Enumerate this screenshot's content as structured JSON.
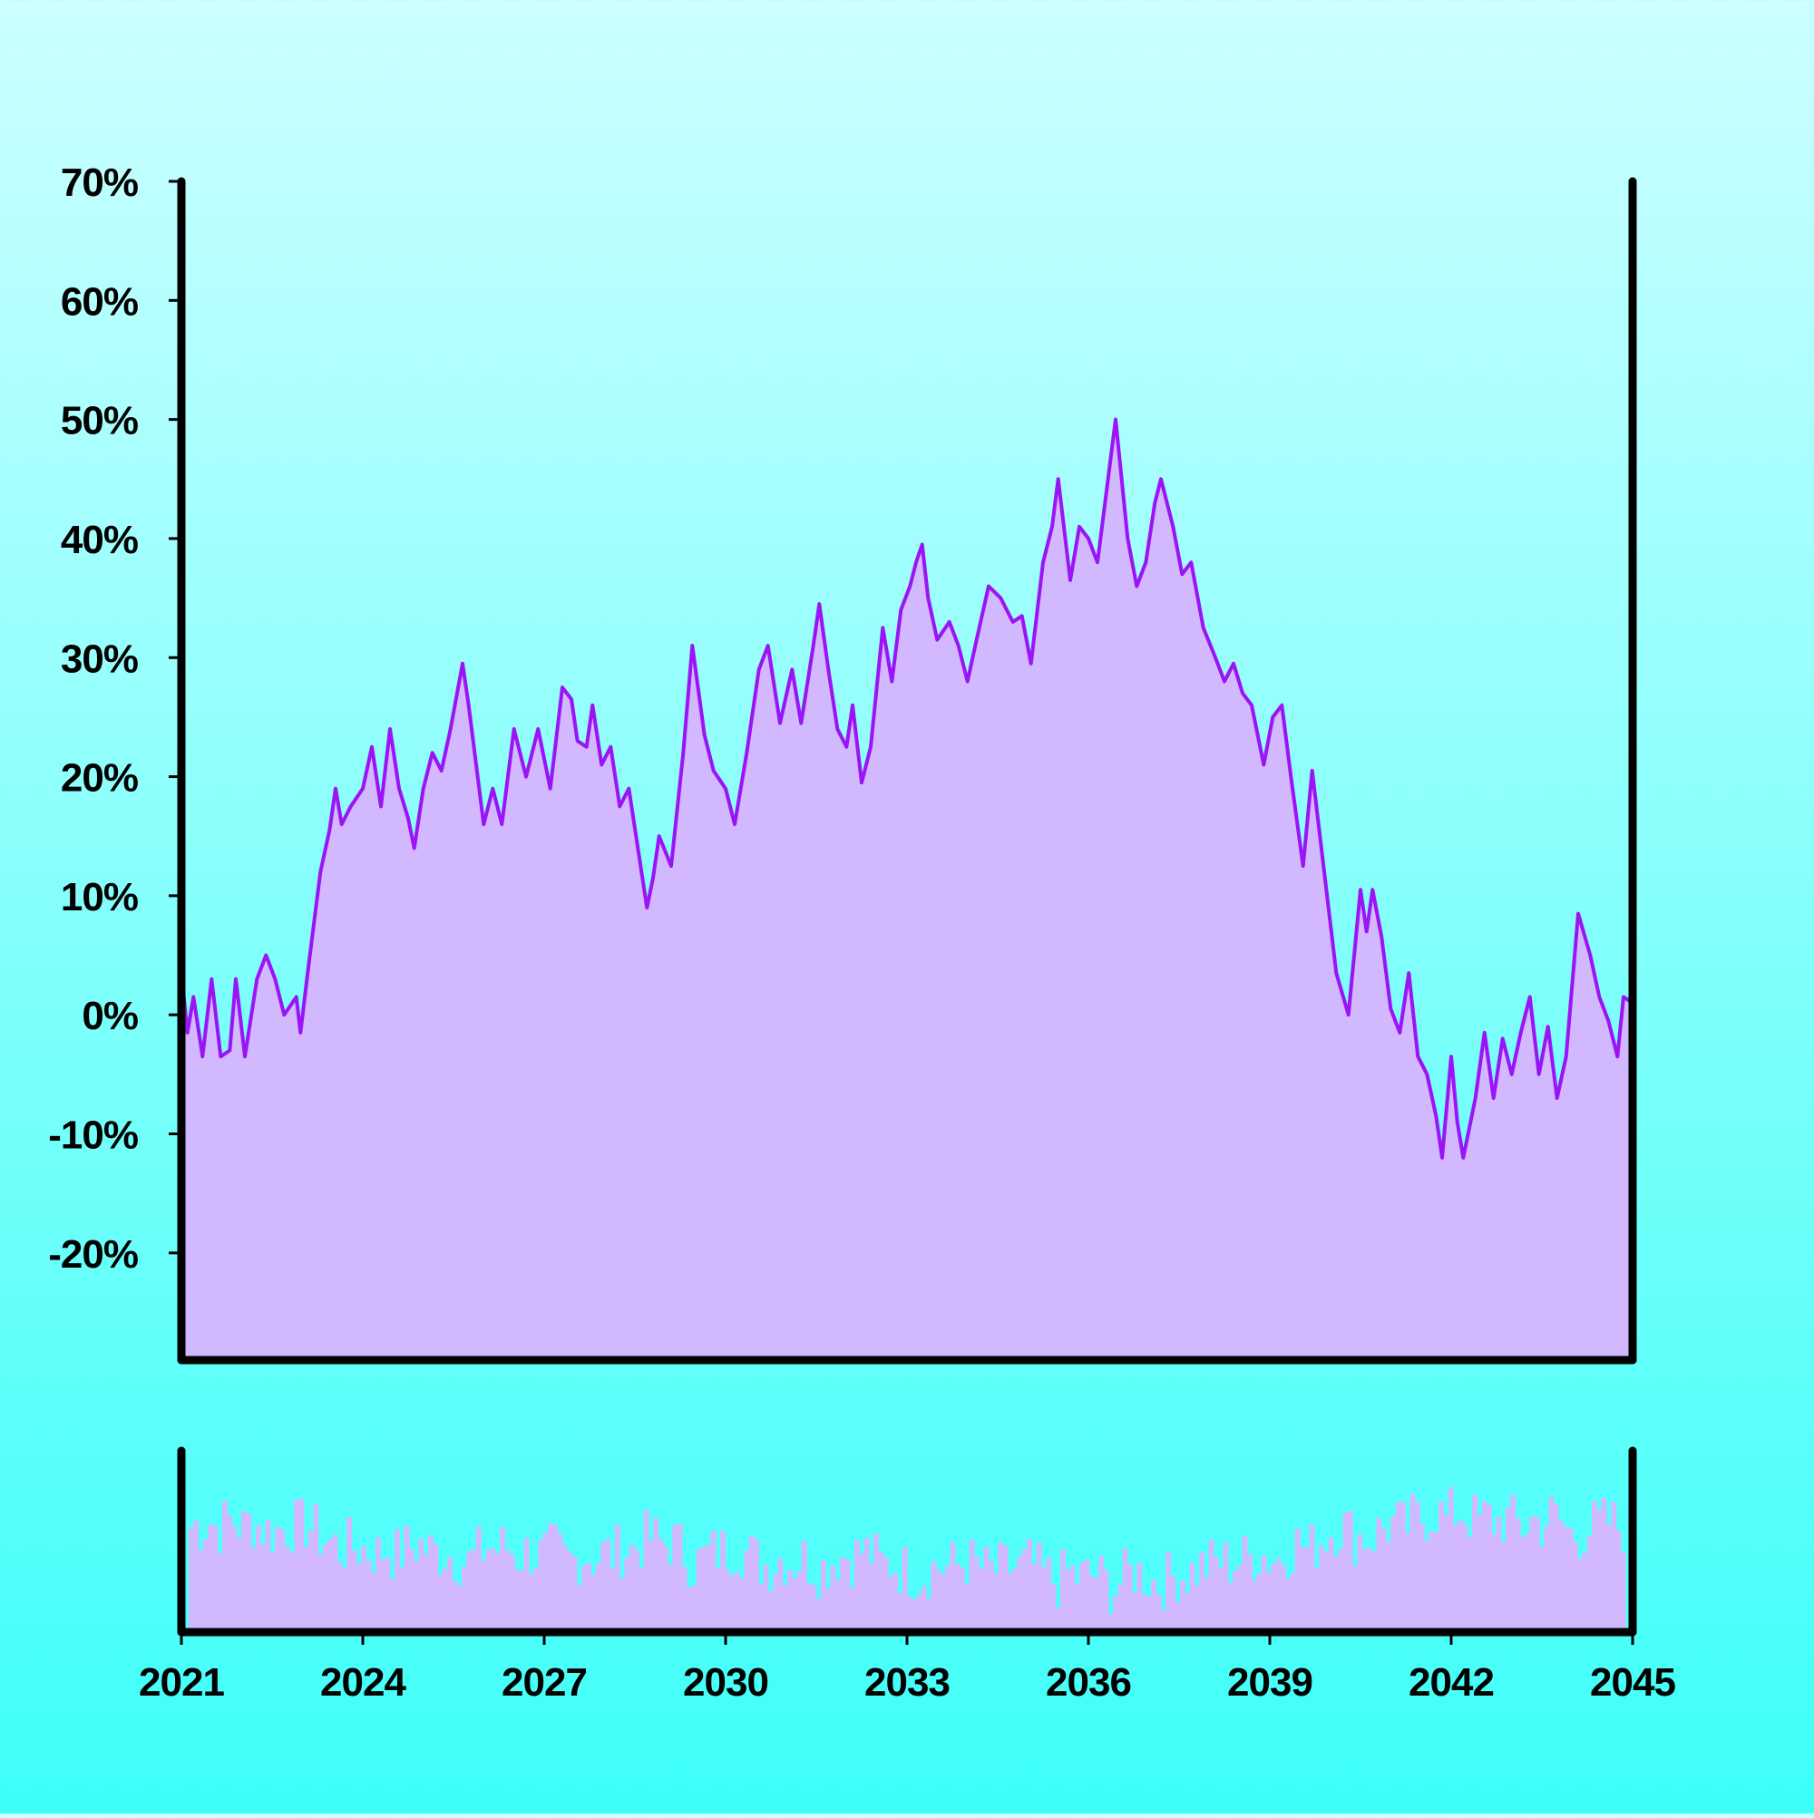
{
  "chart_data": {
    "type": "area",
    "title": "",
    "xlabel": "",
    "ylabel": "",
    "x_tick_labels": [
      "2021",
      "2024",
      "2027",
      "2030",
      "2033",
      "2036",
      "2039",
      "2042",
      "2045"
    ],
    "x_range": [
      2021,
      2045
    ],
    "y_tick_labels": [
      "70%",
      "60%",
      "50%",
      "40%",
      "30%",
      "20%",
      "10%",
      "0%",
      "-10%",
      "-20%"
    ],
    "y_range": [
      -29,
      70
    ],
    "grid": false,
    "legend": "none",
    "colors": {
      "line": "#9b14f5",
      "fill": "#d2b9ff",
      "axis": "#000000"
    },
    "series": [
      {
        "values": [
          [
            2021.0,
            3.5
          ],
          [
            2021.1,
            -1.5
          ],
          [
            2021.2,
            1.5
          ],
          [
            2021.35,
            -3.5
          ],
          [
            2021.5,
            3.0
          ],
          [
            2021.65,
            -3.5
          ],
          [
            2021.8,
            -3.0
          ],
          [
            2021.9,
            3.0
          ],
          [
            2022.05,
            -3.5
          ],
          [
            2022.25,
            3.0
          ],
          [
            2022.4,
            5.0
          ],
          [
            2022.55,
            3.0
          ],
          [
            2022.7,
            0.0
          ],
          [
            2022.9,
            1.5
          ],
          [
            2022.97,
            -1.5
          ],
          [
            2023.1,
            4.0
          ],
          [
            2023.3,
            12.0
          ],
          [
            2023.45,
            15.5
          ],
          [
            2023.55,
            19.0
          ],
          [
            2023.65,
            16.0
          ],
          [
            2023.8,
            17.5
          ],
          [
            2024.0,
            19.0
          ],
          [
            2024.15,
            22.5
          ],
          [
            2024.3,
            17.5
          ],
          [
            2024.45,
            24.0
          ],
          [
            2024.6,
            19.0
          ],
          [
            2024.75,
            16.5
          ],
          [
            2024.85,
            14.0
          ],
          [
            2025.0,
            19.0
          ],
          [
            2025.15,
            22.0
          ],
          [
            2025.3,
            20.5
          ],
          [
            2025.45,
            24.0
          ],
          [
            2025.65,
            29.5
          ],
          [
            2025.75,
            26.0
          ],
          [
            2026.0,
            16.0
          ],
          [
            2026.15,
            19.0
          ],
          [
            2026.3,
            16.0
          ],
          [
            2026.5,
            24.0
          ],
          [
            2026.7,
            20.0
          ],
          [
            2026.9,
            24.0
          ],
          [
            2027.1,
            19.0
          ],
          [
            2027.3,
            27.5
          ],
          [
            2027.45,
            26.5
          ],
          [
            2027.55,
            23.0
          ],
          [
            2027.7,
            22.5
          ],
          [
            2027.8,
            26.0
          ],
          [
            2027.95,
            21.0
          ],
          [
            2028.1,
            22.5
          ],
          [
            2028.25,
            17.5
          ],
          [
            2028.4,
            19.0
          ],
          [
            2028.55,
            14.0
          ],
          [
            2028.7,
            9.0
          ],
          [
            2028.8,
            11.5
          ],
          [
            2028.9,
            15.0
          ],
          [
            2029.1,
            12.5
          ],
          [
            2029.3,
            22.0
          ],
          [
            2029.45,
            31.0
          ],
          [
            2029.65,
            23.5
          ],
          [
            2029.8,
            20.5
          ],
          [
            2030.0,
            19.0
          ],
          [
            2030.15,
            16.0
          ],
          [
            2030.35,
            22.0
          ],
          [
            2030.55,
            29.0
          ],
          [
            2030.7,
            31.0
          ],
          [
            2030.9,
            24.5
          ],
          [
            2031.1,
            29.0
          ],
          [
            2031.25,
            24.5
          ],
          [
            2031.45,
            31.0
          ],
          [
            2031.55,
            34.5
          ],
          [
            2031.7,
            29.0
          ],
          [
            2031.85,
            24.0
          ],
          [
            2032.0,
            22.5
          ],
          [
            2032.1,
            26.0
          ],
          [
            2032.25,
            19.5
          ],
          [
            2032.4,
            22.5
          ],
          [
            2032.6,
            32.5
          ],
          [
            2032.75,
            28.0
          ],
          [
            2032.9,
            34.0
          ],
          [
            2033.05,
            36.0
          ],
          [
            2033.15,
            38.0
          ],
          [
            2033.25,
            39.5
          ],
          [
            2033.35,
            35.0
          ],
          [
            2033.5,
            31.5
          ],
          [
            2033.7,
            33.0
          ],
          [
            2033.85,
            31.0
          ],
          [
            2034.0,
            28.0
          ],
          [
            2034.15,
            31.5
          ],
          [
            2034.35,
            36.0
          ],
          [
            2034.55,
            35.0
          ],
          [
            2034.75,
            33.0
          ],
          [
            2034.9,
            33.5
          ],
          [
            2035.05,
            29.5
          ],
          [
            2035.25,
            38.0
          ],
          [
            2035.4,
            41.0
          ],
          [
            2035.5,
            45.0
          ],
          [
            2035.7,
            36.5
          ],
          [
            2035.85,
            41.0
          ],
          [
            2036.0,
            40.0
          ],
          [
            2036.15,
            38.0
          ],
          [
            2036.3,
            44.0
          ],
          [
            2036.45,
            50.0
          ],
          [
            2036.65,
            40.0
          ],
          [
            2036.8,
            36.0
          ],
          [
            2036.95,
            38.0
          ],
          [
            2037.1,
            43.0
          ],
          [
            2037.2,
            45.0
          ],
          [
            2037.4,
            41.0
          ],
          [
            2037.55,
            37.0
          ],
          [
            2037.7,
            38.0
          ],
          [
            2037.9,
            32.5
          ],
          [
            2038.1,
            30.0
          ],
          [
            2038.25,
            28.0
          ],
          [
            2038.4,
            29.5
          ],
          [
            2038.55,
            27.0
          ],
          [
            2038.7,
            26.0
          ],
          [
            2038.9,
            21.0
          ],
          [
            2039.05,
            25.0
          ],
          [
            2039.2,
            26.0
          ],
          [
            2039.35,
            20.0
          ],
          [
            2039.55,
            12.5
          ],
          [
            2039.7,
            20.5
          ],
          [
            2039.9,
            12.0
          ],
          [
            2040.1,
            3.5
          ],
          [
            2040.3,
            0.0
          ],
          [
            2040.5,
            10.5
          ],
          [
            2040.6,
            7.0
          ],
          [
            2040.7,
            10.5
          ],
          [
            2040.85,
            6.5
          ],
          [
            2041.0,
            0.5
          ],
          [
            2041.15,
            -1.5
          ],
          [
            2041.3,
            3.5
          ],
          [
            2041.45,
            -3.5
          ],
          [
            2041.6,
            -5.0
          ],
          [
            2041.75,
            -8.5
          ],
          [
            2041.85,
            -12.0
          ],
          [
            2042.0,
            -3.5
          ],
          [
            2042.1,
            -9.0
          ],
          [
            2042.2,
            -12.0
          ],
          [
            2042.4,
            -7.0
          ],
          [
            2042.55,
            -1.5
          ],
          [
            2042.7,
            -7.0
          ],
          [
            2042.85,
            -2.0
          ],
          [
            2043.0,
            -5.0
          ],
          [
            2043.15,
            -1.5
          ],
          [
            2043.3,
            1.5
          ],
          [
            2043.45,
            -5.0
          ],
          [
            2043.6,
            -1.0
          ],
          [
            2043.75,
            -7.0
          ],
          [
            2043.9,
            -3.5
          ],
          [
            2044.1,
            8.5
          ],
          [
            2044.3,
            5.0
          ],
          [
            2044.45,
            1.5
          ],
          [
            2044.6,
            -0.5
          ],
          [
            2044.75,
            -3.5
          ],
          [
            2044.85,
            1.5
          ],
          [
            2045.0,
            1.0
          ]
        ]
      }
    ]
  }
}
